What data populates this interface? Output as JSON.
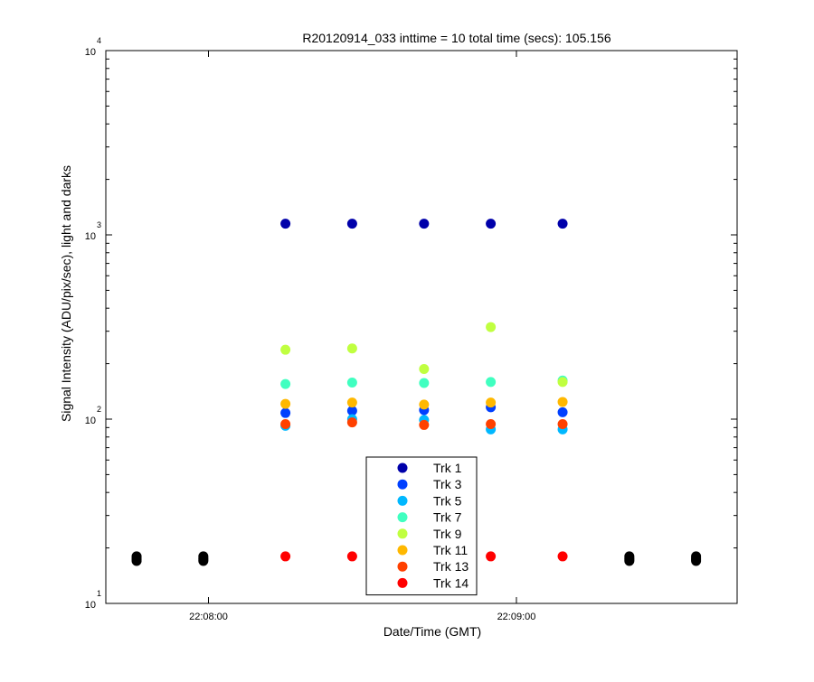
{
  "chart_data": {
    "type": "scatter",
    "title": "R20120914_033 inttime = 10 total time (secs): 105.156",
    "xlabel": "Date/Time (GMT)",
    "ylabel": "Signal Intensity (ADU/pix/sec), light and darks",
    "y_scale": "log",
    "ylim": [
      10,
      10000
    ],
    "xlim": [
      "22:07:40",
      "22:09:43"
    ],
    "x_ticks": [
      {
        "t": "22:08:00",
        "label": "22:08:00"
      },
      {
        "t": "22:09:00",
        "label": "22:09:00"
      }
    ],
    "y_ticks": [
      {
        "v": 10,
        "base": "10",
        "exp": "1"
      },
      {
        "v": 100,
        "base": "10",
        "exp": "2"
      },
      {
        "v": 1000,
        "base": "10",
        "exp": "3"
      },
      {
        "v": 10000,
        "base": "10",
        "exp": "4"
      }
    ],
    "legend_position": "bottom-center",
    "x": [
      "22:08:15",
      "22:08:28",
      "22:08:42",
      "22:08:55",
      "22:09:09"
    ],
    "series": [
      {
        "name": "Trk 1",
        "color": "#0000aa",
        "values": [
          1150,
          1150,
          1150,
          1150,
          1150
        ]
      },
      {
        "name": "Trk 3",
        "color": "#0040ff",
        "values": [
          108,
          111,
          112,
          116,
          109
        ]
      },
      {
        "name": "Trk 5",
        "color": "#00b8ff",
        "values": [
          92,
          100,
          99,
          88,
          88
        ]
      },
      {
        "name": "Trk 7",
        "color": "#40ffc0",
        "values": [
          155,
          158,
          157,
          159,
          162
        ]
      },
      {
        "name": "Trk 9",
        "color": "#c0ff40",
        "values": [
          238,
          242,
          187,
          316,
          159
        ]
      },
      {
        "name": "Trk 11",
        "color": "#ffb800",
        "values": [
          121,
          123,
          120,
          123,
          124
        ]
      },
      {
        "name": "Trk 13",
        "color": "#ff4000",
        "values": [
          94,
          96,
          93,
          94,
          94
        ]
      },
      {
        "name": "Trk 14",
        "color": "#ff0000",
        "values": [
          18,
          18,
          null,
          18,
          18
        ]
      }
    ],
    "dark_series": {
      "color": "#000000",
      "x": [
        "22:07:46",
        "22:07:59",
        "22:09:22",
        "22:09:35"
      ],
      "values": [
        [
          17,
          17.3,
          17.6,
          18
        ],
        [
          17,
          17.3,
          17.6,
          18
        ],
        [
          17,
          17.3,
          17.6,
          18
        ],
        [
          17,
          17.3,
          17.6,
          18
        ]
      ]
    }
  }
}
